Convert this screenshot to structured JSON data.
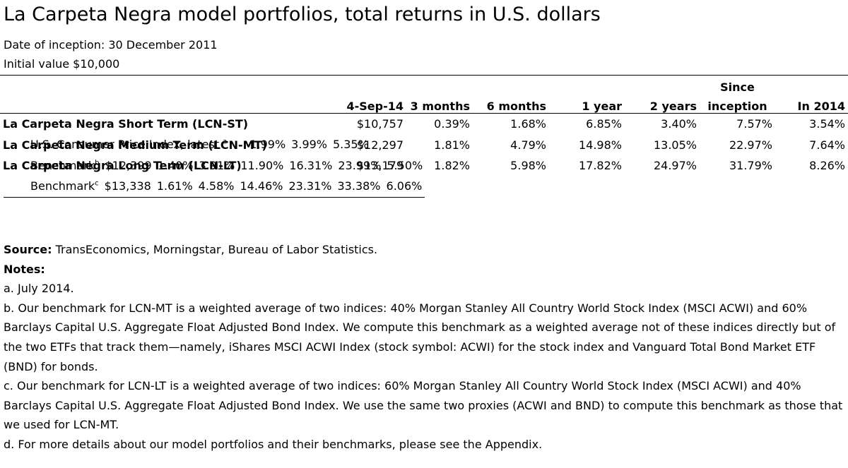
{
  "title": "La Carpeta Negra model portfolios, total returns in U.S. dollars",
  "inception": "Date of inception: 30 December 2011",
  "initial_value": "Initial value $10,000",
  "table": {
    "headers": {
      "date": "4-Sep-14",
      "m3": "3 months",
      "m6": "6 months",
      "y1": "1 year",
      "y2": "2 years",
      "since_top": "Since",
      "since_bottom": "inception",
      "ytd": "In 2014"
    },
    "rows": [
      {
        "label": "La Carpeta Negra Short Term (LCN-ST)",
        "note": "",
        "values": [
          "$10,757",
          "0.39%",
          "1.68%",
          "6.85%",
          "3.40%",
          "7.57%",
          "3.54%"
        ]
      },
      {
        "label": "U.S. Consumer Price Index, latest",
        "note": "a",
        "values": [
          "",
          "",
          "",
          "1.99%",
          "3.99%",
          "5.35%",
          ""
        ]
      },
      {
        "label": "La Carpeta Negra Medium Term (LCN-MT)",
        "note": "",
        "values": [
          "$12,297",
          "1.81%",
          "4.79%",
          "14.98%",
          "13.05%",
          "22.97%",
          "7.64%"
        ]
      },
      {
        "label": "Benchmark",
        "note": "b",
        "values": [
          "$12,399",
          "1.40%",
          "3.91%",
          "11.90%",
          "16.31%",
          "23.99%",
          "5.50%"
        ]
      },
      {
        "label": "La Carpeta Negra Long Term (LCN-LT)",
        "note": "",
        "values": [
          "$13,179",
          "1.82%",
          "5.98%",
          "17.82%",
          "24.97%",
          "31.79%",
          "8.26%"
        ]
      },
      {
        "label": "Benchmark",
        "note": "c",
        "values": [
          "$13,338",
          "1.61%",
          "4.58%",
          "14.46%",
          "23.31%",
          "33.38%",
          "6.06%"
        ]
      }
    ]
  },
  "source_label": "Source:",
  "source_text": "TransEconomics, Morningstar, Bureau of Labor Statistics.",
  "notes_label": "Notes:",
  "notes": [
    "a. July 2014.",
    "b. Our benchmark for LCN-MT is a weighted average of two indices: 40% Morgan Stanley All Country World Stock Index (MSCI ACWI) and 60% Barclays Capital U.S. Aggregate Float Adjusted Bond Index. We compute this benchmark as a weighted average not of these indices directly but of the two ETFs that track them—namely, iShares MSCI ACWI Index (stock symbol: ACWI) for the stock index and Vanguard Total Bond Market ETF (BND) for bonds.",
    "c. Our benchmark for LCN-LT is a weighted average of two indices: 60% Morgan Stanley All Country World Stock Index (MSCI ACWI) and 40% Barclays Capital U.S. Aggregate Float Adjusted Bond Index. We use the same two proxies (ACWI and BND) to compute this benchmark as those that we used for LCN-MT.",
    "d. For more details about our model portfolios and their benchmarks, please see the Appendix."
  ]
}
